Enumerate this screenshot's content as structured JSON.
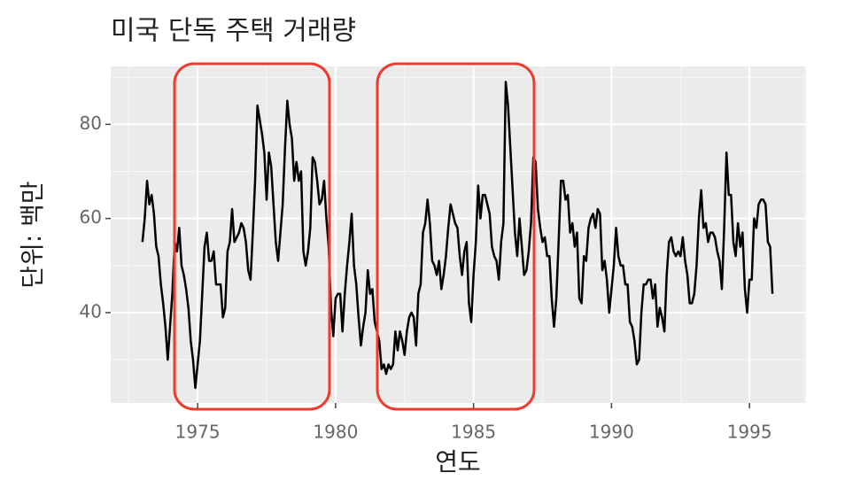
{
  "chart_data": {
    "type": "line",
    "title": "미국 단독 주택 거래량",
    "x_label": "연도",
    "y_label": "단위: 백만",
    "xlim": [
      1971.85,
      1997.05
    ],
    "ylim": [
      20.8,
      92.3
    ],
    "xticks": [
      1975,
      1980,
      1985,
      1990,
      1995
    ],
    "yticks": [
      40,
      60,
      80
    ],
    "x_minor_ticks": [
      1972.5,
      1977.5,
      1982.5,
      1987.5,
      1992.5,
      1997
    ],
    "y_minor_ticks": [
      30,
      50,
      70,
      90
    ],
    "grid": true,
    "series": [
      {
        "color": "#000000",
        "x": [
          1973,
          1973.083,
          1973.167,
          1973.25,
          1973.333,
          1973.417,
          1973.5,
          1973.583,
          1973.667,
          1973.75,
          1973.833,
          1973.917,
          1974,
          1974.083,
          1974.167,
          1974.25,
          1974.333,
          1974.417,
          1974.5,
          1974.583,
          1974.667,
          1974.75,
          1974.833,
          1974.917,
          1975,
          1975.083,
          1975.167,
          1975.25,
          1975.333,
          1975.417,
          1975.5,
          1975.583,
          1975.667,
          1975.75,
          1975.833,
          1975.917,
          1976,
          1976.083,
          1976.167,
          1976.25,
          1976.333,
          1976.417,
          1976.5,
          1976.583,
          1976.667,
          1976.75,
          1976.833,
          1976.917,
          1977,
          1977.083,
          1977.167,
          1977.25,
          1977.333,
          1977.417,
          1977.5,
          1977.583,
          1977.667,
          1977.75,
          1977.833,
          1977.917,
          1978,
          1978.083,
          1978.167,
          1978.25,
          1978.333,
          1978.417,
          1978.5,
          1978.583,
          1978.667,
          1978.75,
          1978.833,
          1978.917,
          1979,
          1979.083,
          1979.167,
          1979.25,
          1979.333,
          1979.417,
          1979.5,
          1979.583,
          1979.667,
          1979.75,
          1979.833,
          1979.917,
          1980,
          1980.083,
          1980.167,
          1980.25,
          1980.333,
          1980.417,
          1980.5,
          1980.583,
          1980.667,
          1980.75,
          1980.833,
          1980.917,
          1981,
          1981.083,
          1981.167,
          1981.25,
          1981.333,
          1981.417,
          1981.5,
          1981.583,
          1981.667,
          1981.75,
          1981.833,
          1981.917,
          1982,
          1982.083,
          1982.167,
          1982.25,
          1982.333,
          1982.417,
          1982.5,
          1982.583,
          1982.667,
          1982.75,
          1982.833,
          1982.917,
          1983,
          1983.083,
          1983.167,
          1983.25,
          1983.333,
          1983.417,
          1983.5,
          1983.583,
          1983.667,
          1983.75,
          1983.833,
          1983.917,
          1984,
          1984.083,
          1984.167,
          1984.25,
          1984.333,
          1984.417,
          1984.5,
          1984.583,
          1984.667,
          1984.75,
          1984.833,
          1984.917,
          1985,
          1985.083,
          1985.167,
          1985.25,
          1985.333,
          1985.417,
          1985.5,
          1985.583,
          1985.667,
          1985.75,
          1985.833,
          1985.917,
          1986,
          1986.083,
          1986.167,
          1986.25,
          1986.333,
          1986.417,
          1986.5,
          1986.583,
          1986.667,
          1986.75,
          1986.833,
          1986.917,
          1987,
          1987.083,
          1987.167,
          1987.25,
          1987.333,
          1987.417,
          1987.5,
          1987.583,
          1987.667,
          1987.75,
          1987.833,
          1987.917,
          1988,
          1988.083,
          1988.167,
          1988.25,
          1988.333,
          1988.417,
          1988.5,
          1988.583,
          1988.667,
          1988.75,
          1988.833,
          1988.917,
          1989,
          1989.083,
          1989.167,
          1989.25,
          1989.333,
          1989.417,
          1989.5,
          1989.583,
          1989.667,
          1989.75,
          1989.833,
          1989.917,
          1990,
          1990.083,
          1990.167,
          1990.25,
          1990.333,
          1990.417,
          1990.5,
          1990.583,
          1990.667,
          1990.75,
          1990.833,
          1990.917,
          1991,
          1991.083,
          1991.167,
          1991.25,
          1991.333,
          1991.417,
          1991.5,
          1991.583,
          1991.667,
          1991.75,
          1991.833,
          1991.917,
          1992,
          1992.083,
          1992.167,
          1992.25,
          1992.333,
          1992.417,
          1992.5,
          1992.583,
          1992.667,
          1992.75,
          1992.833,
          1992.917,
          1993,
          1993.083,
          1993.167,
          1993.25,
          1993.333,
          1993.417,
          1993.5,
          1993.583,
          1993.667,
          1993.75,
          1993.833,
          1993.917,
          1994,
          1994.083,
          1994.167,
          1994.25,
          1994.333,
          1994.417,
          1994.5,
          1994.583,
          1994.667,
          1994.75,
          1994.833,
          1994.917,
          1995,
          1995.083,
          1995.167,
          1995.25,
          1995.333,
          1995.417,
          1995.5,
          1995.583,
          1995.667,
          1995.75,
          1995.833
        ],
        "values": [
          55,
          60,
          68,
          63,
          65,
          61,
          54,
          52,
          46,
          42,
          37,
          30,
          37,
          44,
          55,
          53,
          58,
          50,
          48,
          45,
          41,
          34,
          30,
          24,
          29,
          34,
          44,
          54,
          57,
          51,
          51,
          53,
          46,
          46,
          46,
          39,
          41,
          53,
          55,
          62,
          55,
          56,
          57,
          59,
          58,
          55,
          49,
          47,
          57,
          68,
          84,
          81,
          78,
          74,
          64,
          74,
          71,
          63,
          55,
          51,
          57,
          63,
          75,
          85,
          80,
          77,
          68,
          72,
          68,
          70,
          53,
          50,
          53,
          58,
          73,
          72,
          68,
          63,
          64,
          68,
          60,
          54,
          41,
          35,
          43,
          44,
          44,
          36,
          44,
          50,
          55,
          61,
          50,
          46,
          39,
          33,
          37,
          40,
          49,
          44,
          45,
          38,
          36,
          34,
          28,
          29,
          27,
          29,
          28,
          29,
          36,
          32,
          36,
          34,
          31,
          36,
          39,
          40,
          39,
          33,
          44,
          46,
          57,
          59,
          64,
          59,
          51,
          50,
          48,
          51,
          45,
          48,
          52,
          58,
          63,
          61,
          59,
          58,
          52,
          48,
          53,
          55,
          42,
          38,
          48,
          55,
          67,
          60,
          65,
          65,
          63,
          61,
          54,
          52,
          51,
          47,
          55,
          59,
          89,
          84,
          75,
          66,
          57,
          52,
          60,
          54,
          48,
          49,
          53,
          59,
          73,
          72,
          62,
          58,
          55,
          56,
          52,
          52,
          43,
          37,
          43,
          55,
          68,
          68,
          64,
          65,
          57,
          59,
          54,
          57,
          43,
          42,
          52,
          51,
          58,
          60,
          61,
          58,
          62,
          61,
          49,
          51,
          47,
          40,
          45,
          50,
          58,
          52,
          50,
          50,
          46,
          46,
          38,
          37,
          34,
          29,
          30,
          40,
          46,
          46,
          47,
          47,
          43,
          46,
          37,
          41,
          39,
          36,
          48,
          55,
          56,
          53,
          52,
          53,
          52,
          56,
          51,
          48,
          42,
          42,
          44,
          50,
          60,
          66,
          58,
          59,
          55,
          57,
          57,
          56,
          53,
          51,
          45,
          58,
          74,
          65,
          65,
          55,
          52,
          59,
          54,
          57,
          45,
          40,
          47,
          47,
          60,
          58,
          63,
          64,
          64,
          63,
          55,
          54,
          44
        ]
      }
    ]
  }
}
